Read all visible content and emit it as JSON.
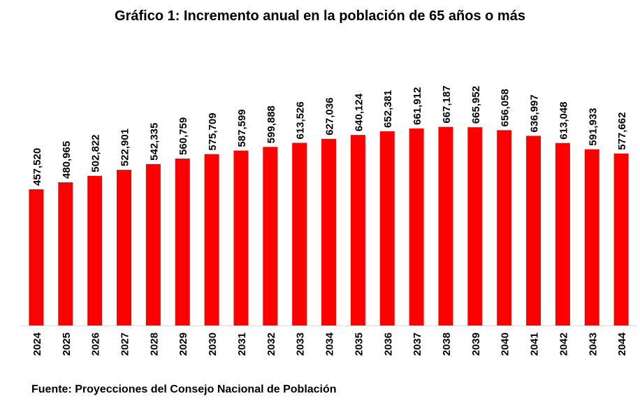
{
  "chart_data": {
    "type": "bar",
    "title": "Gráfico 1: Incremento anual en la población de 65 años o más",
    "source": "Fuente: Proyecciones del Consejo Nacional de Población",
    "xlabel": "",
    "ylabel": "",
    "categories": [
      "2024",
      "2025",
      "2026",
      "2027",
      "2028",
      "2029",
      "2030",
      "2031",
      "2032",
      "2033",
      "2034",
      "2035",
      "2036",
      "2037",
      "2038",
      "2039",
      "2040",
      "2041",
      "2042",
      "2043",
      "2044"
    ],
    "values": [
      457520,
      480965,
      502822,
      522901,
      542335,
      560759,
      575709,
      587599,
      599888,
      613526,
      627036,
      640124,
      652381,
      661912,
      667187,
      665952,
      656058,
      636997,
      613048,
      591933,
      577662
    ],
    "value_labels": [
      "457,520",
      "480,965",
      "502,822",
      "522,901",
      "542,335",
      "560,759",
      "575,709",
      "587,599",
      "599,888",
      "613,526",
      "627,036",
      "640,124",
      "652,381",
      "661,912",
      "667,187",
      "665,952",
      "656,058",
      "636,997",
      "613,048",
      "591,933",
      "577,662"
    ],
    "ylim": [
      0,
      700000
    ],
    "grid": false,
    "legend": "none",
    "bar_color": "#ff0000",
    "axis_color": "#d9d9d9"
  }
}
